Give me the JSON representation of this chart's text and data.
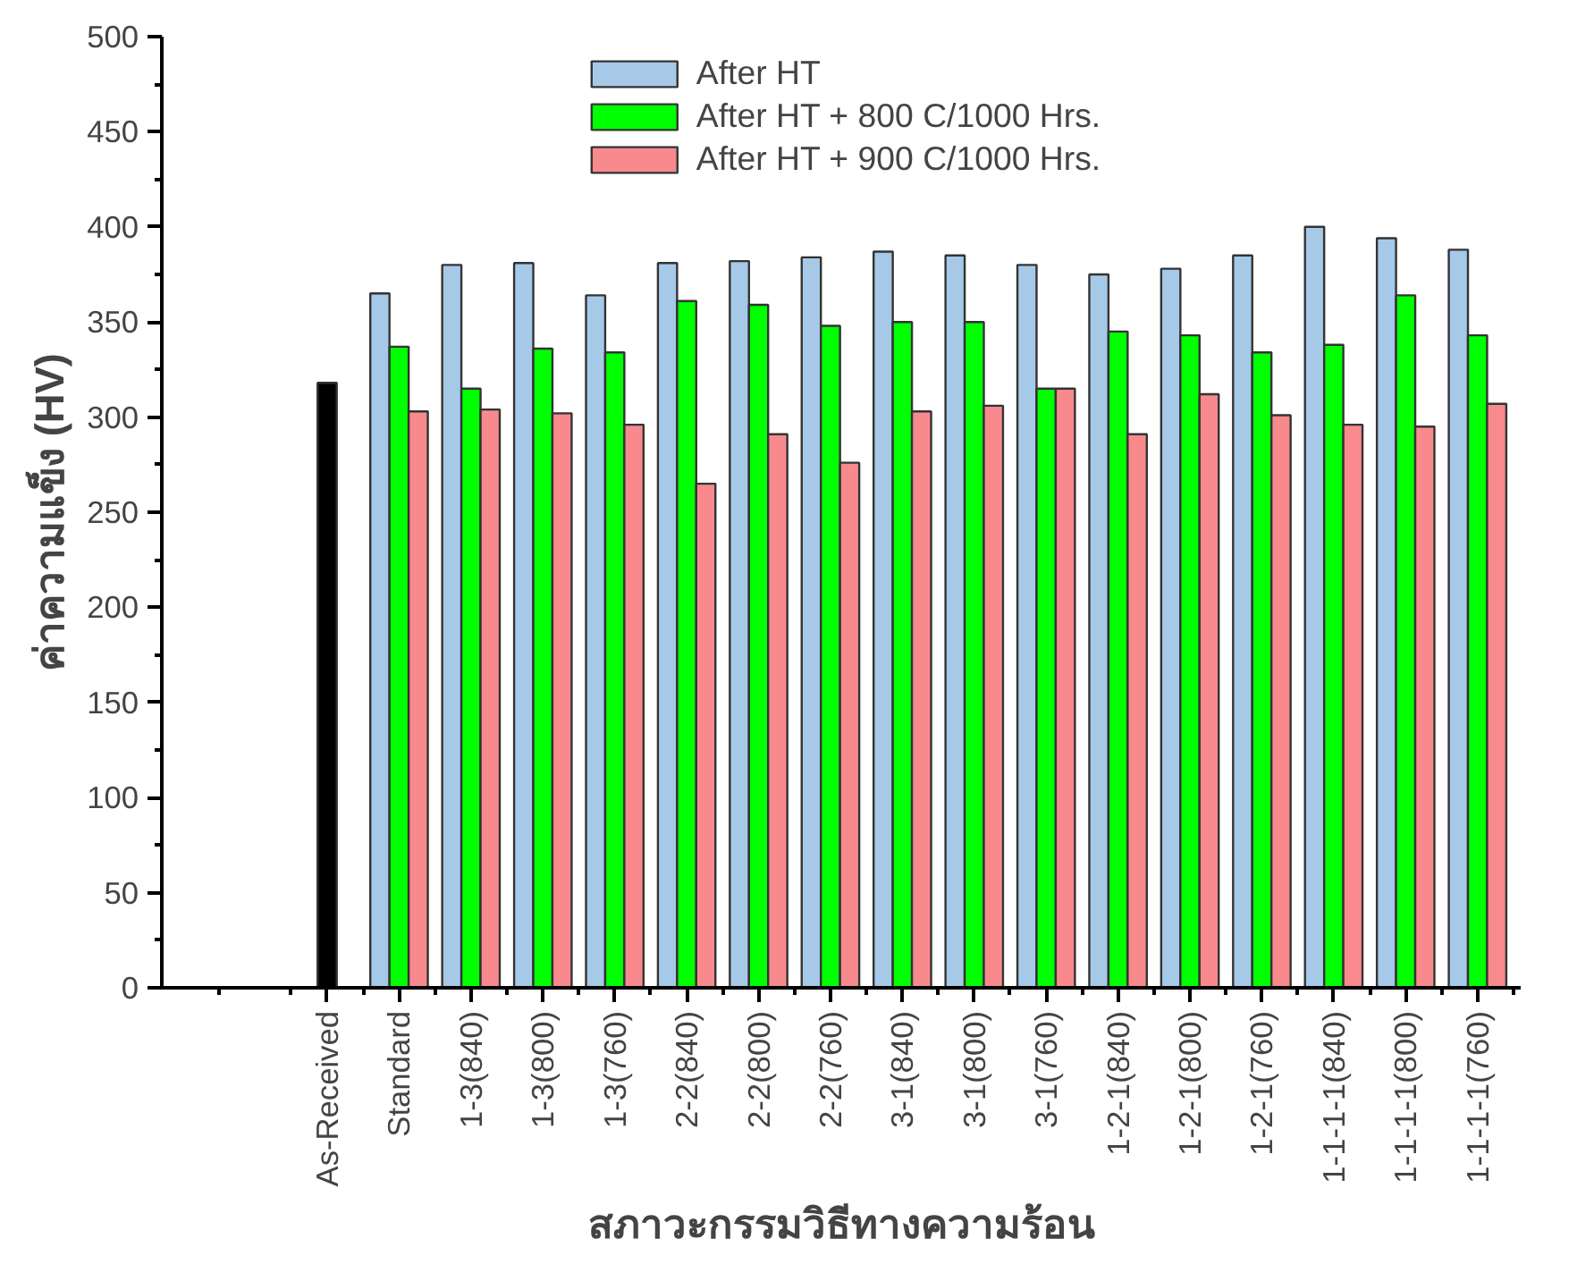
{
  "chart_data": {
    "type": "bar",
    "xlabel": "สภาวะกรรมวิธีทางความร้อน",
    "ylabel": "ค่าความแข็ง (HV)",
    "categories": [
      "As-Received",
      "Standard",
      "1-3(840)",
      "1-3(800)",
      "1-3(760)",
      "2-2(840)",
      "2-2(800)",
      "2-2(760)",
      "3-1(840)",
      "3-1(800)",
      "3-1(760)",
      "1-2-1(840)",
      "1-2-1(800)",
      "1-2-1(760)",
      "1-1-1-1(840)",
      "1-1-1-1(800)",
      "1-1-1-1(760)"
    ],
    "series": [
      {
        "color": "#000000",
        "values": [
          318,
          null,
          null,
          null,
          null,
          null,
          null,
          null,
          null,
          null,
          null,
          null,
          null,
          null,
          null,
          null,
          null
        ]
      },
      {
        "name": "After HT",
        "color": "#a6c9e8",
        "values": [
          null,
          365,
          380,
          381,
          364,
          381,
          382,
          384,
          387,
          385,
          380,
          375,
          378,
          385,
          400,
          394,
          388
        ]
      },
      {
        "name": "After HT + 800 C/1000 Hrs.",
        "color": "#00ff00",
        "values": [
          null,
          337,
          315,
          336,
          334,
          361,
          359,
          348,
          350,
          350,
          315,
          345,
          343,
          334,
          338,
          364,
          343
        ]
      },
      {
        "name": "After HT + 900 C/1000 Hrs.",
        "color": "#f88a8e",
        "values": [
          null,
          303,
          304,
          302,
          296,
          265,
          291,
          276,
          303,
          306,
          315,
          291,
          312,
          301,
          296,
          295,
          307
        ]
      }
    ],
    "ylim": [
      0,
      500
    ],
    "yticks": [
      0,
      50,
      100,
      150,
      200,
      250,
      300,
      350,
      400,
      450,
      500
    ],
    "grid": false,
    "legend": "top"
  }
}
